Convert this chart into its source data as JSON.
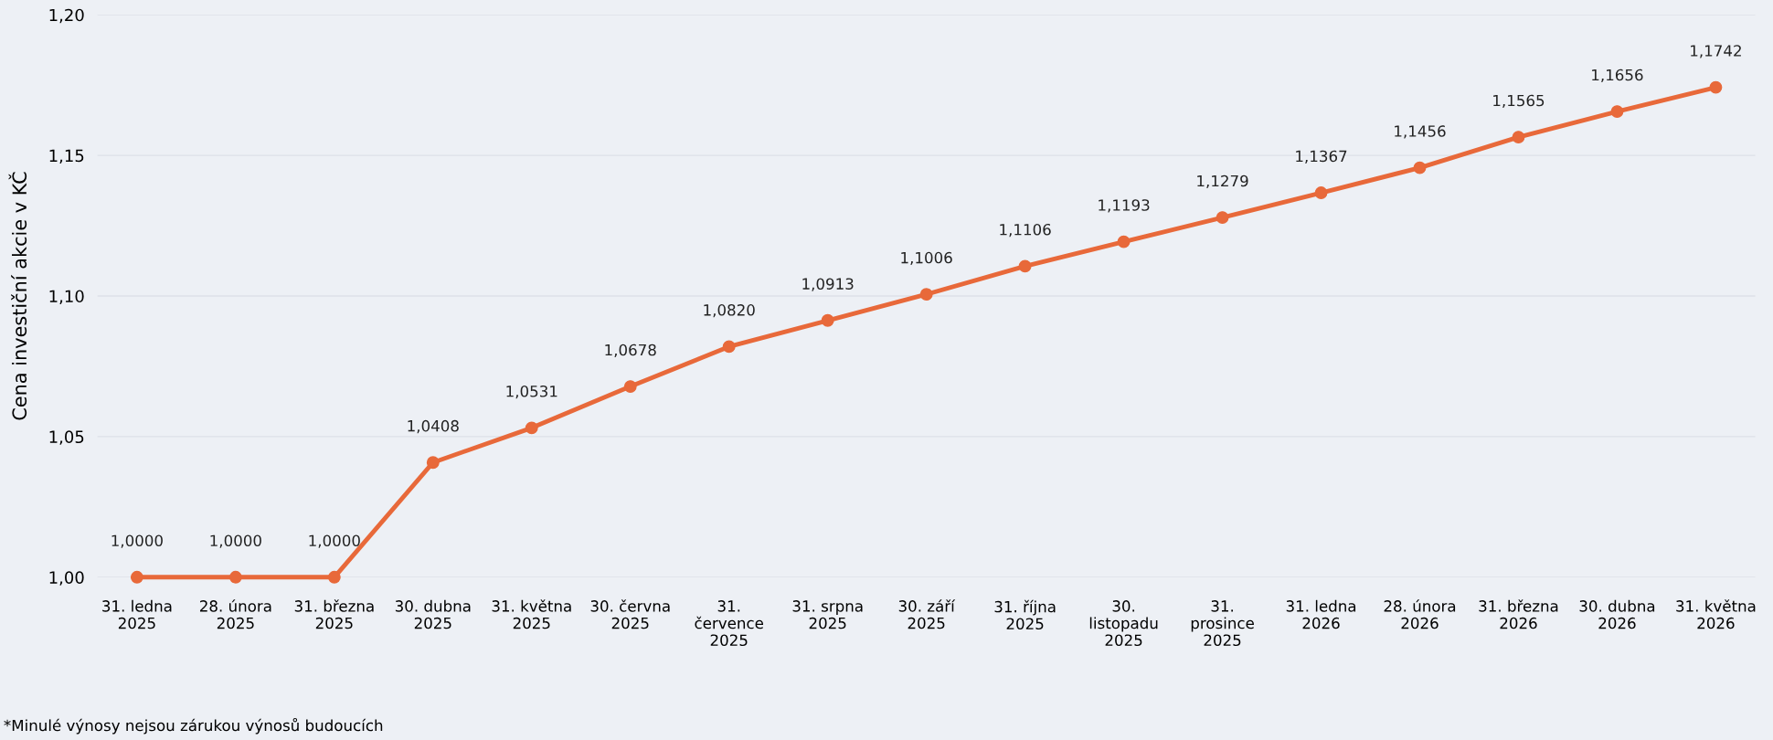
{
  "chart_data": {
    "type": "line",
    "ylabel": "Cena investiční akcie v KČ",
    "categories": [
      "31. ledna\n2025",
      "28. února\n2025",
      "31. března\n2025",
      "30. dubna\n2025",
      "31. května\n2025",
      "30. června\n2025",
      "31.\nčervence\n2025",
      "31. srpna\n2025",
      "30. září\n2025",
      "31. října\n2025",
      "30.\nlistopadu\n2025",
      "31.\nprosince\n2025",
      "31. ledna\n2026",
      "28. února\n2026",
      "31. března\n2026",
      "30. dubna\n2026",
      "31. května\n2026"
    ],
    "series": [
      {
        "color": "#e8693a",
        "values": [
          1.0,
          1.0,
          1.0,
          1.0408,
          1.0531,
          1.0678,
          1.082,
          1.0913,
          1.1006,
          1.1106,
          1.1193,
          1.1279,
          1.1367,
          1.1456,
          1.1565,
          1.1656,
          1.1742
        ],
        "value_labels": [
          "1,0000",
          "1,0000",
          "1,0000",
          "1,0408",
          "1,0531",
          "1,0678",
          "1,0820",
          "1,0913",
          "1,1006",
          "1,1106",
          "1,1193",
          "1,1279",
          "1,1367",
          "1,1456",
          "1,1565",
          "1,1656",
          "1,1742"
        ]
      }
    ],
    "ylim": [
      1.0,
      1.2
    ],
    "yticks": [
      {
        "value": 1.0,
        "label": "1,00"
      },
      {
        "value": 1.05,
        "label": "1,05"
      },
      {
        "value": 1.1,
        "label": "1,10"
      },
      {
        "value": 1.15,
        "label": "1,15"
      },
      {
        "value": 1.2,
        "label": "1,20"
      }
    ],
    "grid": "y",
    "marker": "circle",
    "line_style": "solid",
    "annotations": [
      "*Minulé výnosy nejsou zárukou výnosů budoucích"
    ]
  }
}
